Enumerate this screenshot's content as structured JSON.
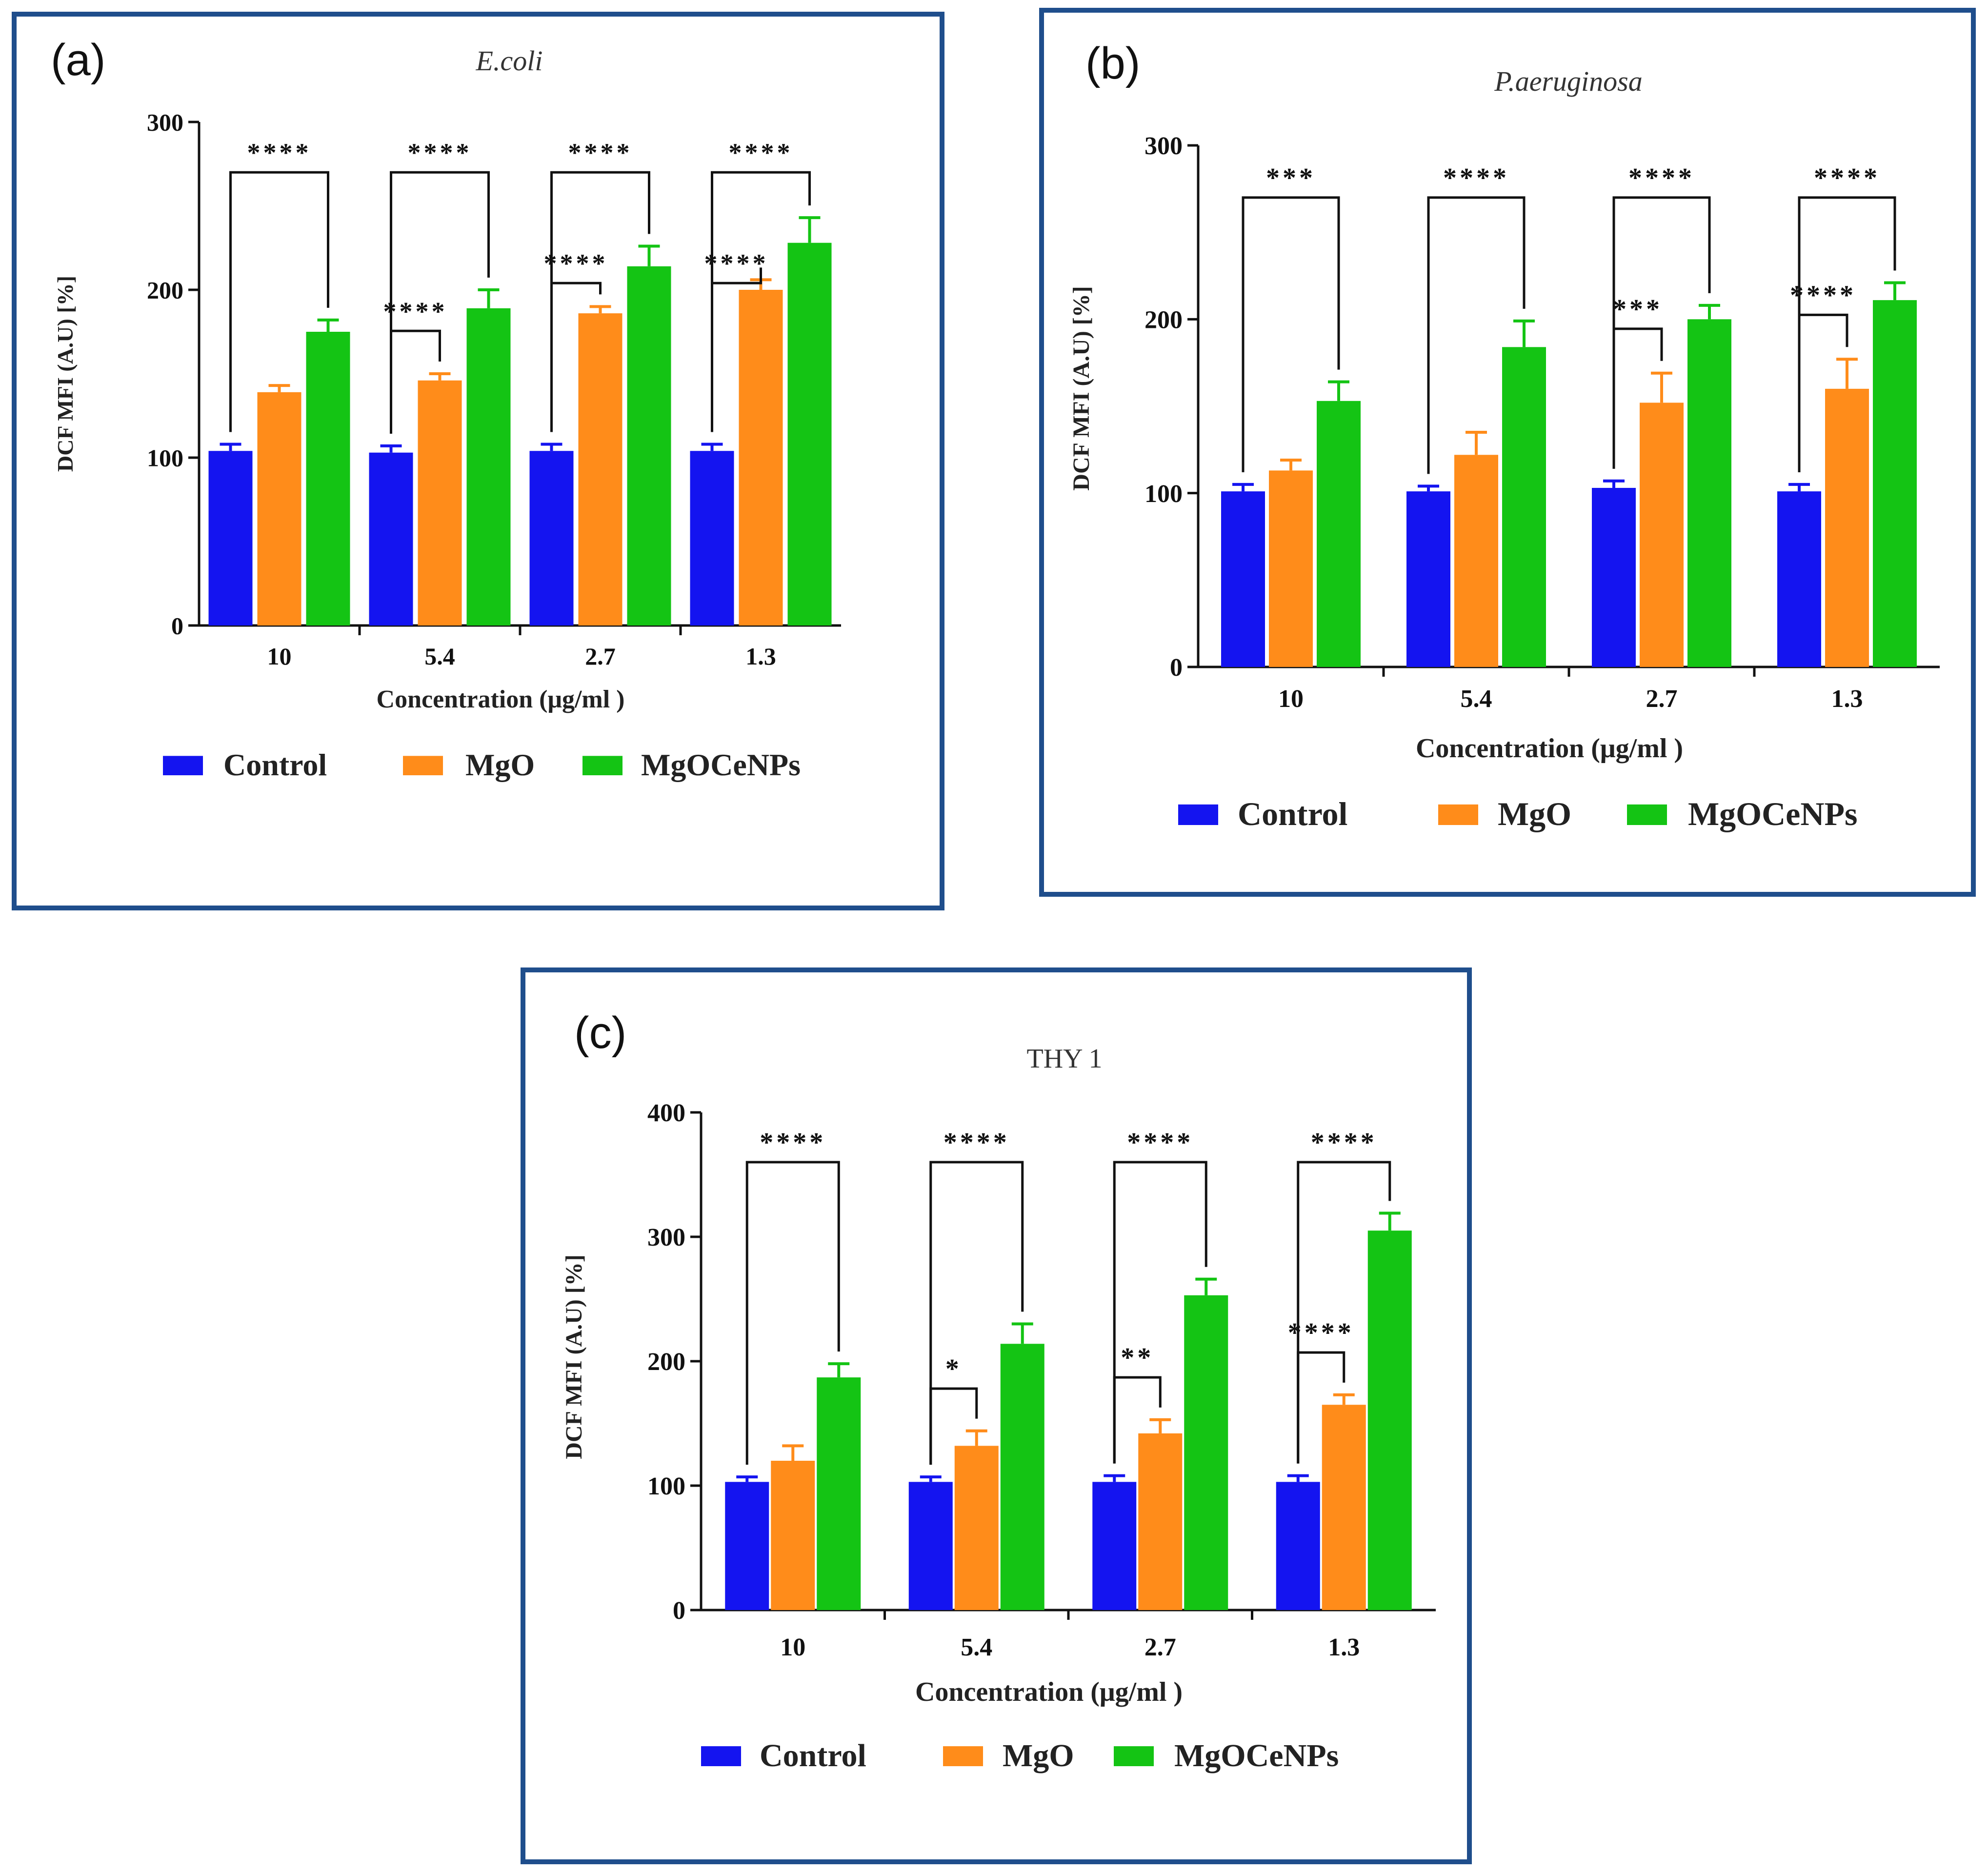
{
  "colors": {
    "border": "#1f4e8c",
    "axis": "#111111",
    "control": "#1414f0",
    "mgo": "#ff8c1a",
    "mgocenps": "#14c414"
  },
  "chart_data": [
    {
      "type": "bar",
      "panel_label": "(a)",
      "title": "E.coli",
      "title_italic": true,
      "xlabel": "Concentration (μg/ml )",
      "ylabel": "DCF MFI (A.U) [%]",
      "ylim": [
        0,
        300
      ],
      "yticks": [
        "0",
        "100",
        "200",
        "300"
      ],
      "categories": [
        "10",
        "5.4",
        "2.7",
        "1.3"
      ],
      "series": [
        {
          "name": "Control",
          "values": [
            104,
            103,
            104,
            104
          ],
          "errors": [
            4,
            4,
            4,
            4
          ]
        },
        {
          "name": "MgO",
          "values": [
            139,
            146,
            186,
            200
          ],
          "errors": [
            4,
            4,
            4,
            6
          ]
        },
        {
          "name": "MgOCeNPs",
          "values": [
            175,
            189,
            214,
            228
          ],
          "errors": [
            7,
            11,
            12,
            15
          ]
        }
      ],
      "annotations": [
        {
          "category": 0,
          "from": "Control",
          "to": "MgOCeNPs",
          "label": "****"
        },
        {
          "category": 1,
          "from": "Control",
          "to": "MgOCeNPs",
          "label": "****"
        },
        {
          "category": 1,
          "from": "Control",
          "to": "MgO",
          "label": "****"
        },
        {
          "category": 2,
          "from": "Control",
          "to": "MgOCeNPs",
          "label": "****"
        },
        {
          "category": 2,
          "from": "Control",
          "to": "MgO",
          "label": "****"
        },
        {
          "category": 3,
          "from": "Control",
          "to": "MgOCeNPs",
          "label": "****"
        },
        {
          "category": 3,
          "from": "Control",
          "to": "MgO",
          "label": "****"
        }
      ]
    },
    {
      "type": "bar",
      "panel_label": "(b)",
      "title": "P.aeruginosa",
      "title_italic": true,
      "xlabel": "Concentration (μg/ml )",
      "ylabel": "DCF MFI (A.U) [%]",
      "ylim": [
        0,
        300
      ],
      "yticks": [
        "0",
        "100",
        "200",
        "300"
      ],
      "categories": [
        "10",
        "5.4",
        "2.7",
        "1.3"
      ],
      "series": [
        {
          "name": "Control",
          "values": [
            101,
            101,
            103,
            101
          ],
          "errors": [
            4,
            3,
            4,
            4
          ]
        },
        {
          "name": "MgO",
          "values": [
            113,
            122,
            152,
            160
          ],
          "errors": [
            6,
            13,
            17,
            17
          ]
        },
        {
          "name": "MgOCeNPs",
          "values": [
            153,
            184,
            200,
            211
          ],
          "errors": [
            11,
            15,
            8,
            10
          ]
        }
      ],
      "annotations": [
        {
          "category": 0,
          "from": "Control",
          "to": "MgOCeNPs",
          "label": "***"
        },
        {
          "category": 1,
          "from": "Control",
          "to": "MgOCeNPs",
          "label": "****"
        },
        {
          "category": 2,
          "from": "Control",
          "to": "MgOCeNPs",
          "label": "****"
        },
        {
          "category": 2,
          "from": "Control",
          "to": "MgO",
          "label": "***"
        },
        {
          "category": 3,
          "from": "Control",
          "to": "MgOCeNPs",
          "label": "****"
        },
        {
          "category": 3,
          "from": "Control",
          "to": "MgO",
          "label": "****"
        }
      ]
    },
    {
      "type": "bar",
      "panel_label": "(c)",
      "title": "THY 1",
      "title_italic": false,
      "xlabel": "Concentration (μg/ml )",
      "ylabel": "DCF MFI (A.U) [%]",
      "ylim": [
        0,
        400
      ],
      "yticks": [
        "0",
        "100",
        "200",
        "300",
        "400"
      ],
      "categories": [
        "10",
        "5.4",
        "2.7",
        "1.3"
      ],
      "series": [
        {
          "name": "Control",
          "values": [
            103,
            103,
            103,
            103
          ],
          "errors": [
            4,
            4,
            5,
            5
          ]
        },
        {
          "name": "MgO",
          "values": [
            120,
            132,
            142,
            165
          ],
          "errors": [
            12,
            12,
            11,
            8
          ]
        },
        {
          "name": "MgOCeNPs",
          "values": [
            187,
            214,
            253,
            305
          ],
          "errors": [
            11,
            16,
            13,
            14
          ]
        }
      ],
      "annotations": [
        {
          "category": 0,
          "from": "Control",
          "to": "MgOCeNPs",
          "label": "****"
        },
        {
          "category": 1,
          "from": "Control",
          "to": "MgOCeNPs",
          "label": "****"
        },
        {
          "category": 1,
          "from": "Control",
          "to": "MgO",
          "label": "*"
        },
        {
          "category": 2,
          "from": "Control",
          "to": "MgOCeNPs",
          "label": "****"
        },
        {
          "category": 2,
          "from": "Control",
          "to": "MgO",
          "label": "**"
        },
        {
          "category": 3,
          "from": "Control",
          "to": "MgOCeNPs",
          "label": "****"
        },
        {
          "category": 3,
          "from": "Control",
          "to": "MgO",
          "label": "****"
        }
      ]
    }
  ]
}
